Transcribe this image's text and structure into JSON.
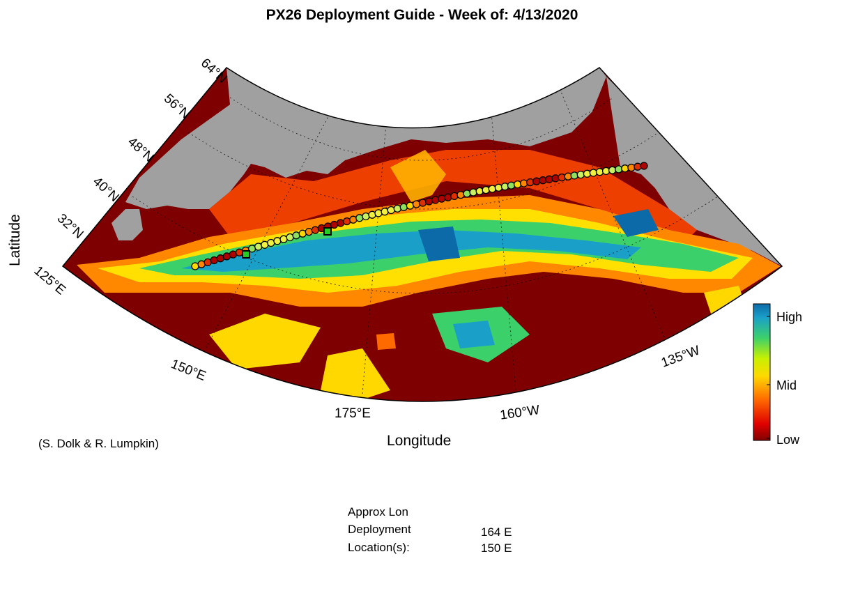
{
  "title": "PX26 Deployment Guide - Week of: 4/13/2020",
  "axes": {
    "xlabel": "Longitude",
    "ylabel": "Latitude",
    "lat_ticks": [
      "64°N",
      "56°N",
      "48°N",
      "40°N",
      "32°N"
    ],
    "lon_ticks": [
      "125°E",
      "150°E",
      "175°E",
      "160°W",
      "135°W"
    ]
  },
  "colorbar": {
    "labels": {
      "high": "High",
      "mid": "Mid",
      "low": "Low"
    },
    "colors": [
      "#7f0000",
      "#e00000",
      "#ff6a00",
      "#ffd800",
      "#c8f000",
      "#3cd06a",
      "#1aa0c8",
      "#0c6aa8"
    ]
  },
  "credit": "(S. Dolk & R. Lumpkin)",
  "deployment": {
    "header": "Approx Lon",
    "label_line1": "Deployment",
    "label_line2": "Location(s):",
    "locations": [
      "164 E",
      "150 E"
    ]
  },
  "colors": {
    "land": "#a0a0a0",
    "ocean_low": "#7f0000",
    "transect_fill": "#f0f040",
    "deployment_marker": "#22cc22"
  }
}
